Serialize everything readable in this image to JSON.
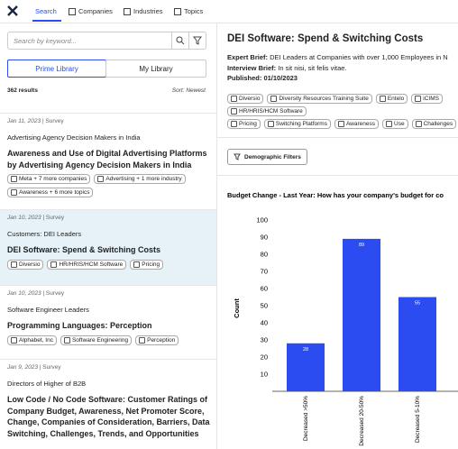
{
  "nav": {
    "tabs": [
      "Search",
      "Companies",
      "Industries",
      "Topics"
    ]
  },
  "search": {
    "placeholder": "Search by keyword..."
  },
  "library": {
    "tabs": [
      "Prime Library",
      "My Library"
    ]
  },
  "results": {
    "count": "362 results",
    "sort": "Sort: Newest"
  },
  "items": [
    {
      "date": "Jan 11, 2023",
      "type": "Survey",
      "audience": "Advertising Agency Decision Makers in India",
      "title": "Awareness and Use of Digital Advertising Platforms by Advertising Agency Decision Makers in India",
      "tags": [
        "Meta + 7 more companies",
        "Advertising + 1 more industry",
        "Awareness + 6 more topics"
      ]
    },
    {
      "date": "Jan 10, 2023",
      "type": "Survey",
      "audience": "Customers: DEI Leaders",
      "title": "DEI Software: Spend & Switching Costs",
      "tags": [
        "Diversio",
        "HR/HRIS/HCM Software",
        "Pricing"
      ]
    },
    {
      "date": "Jan 10, 2023",
      "type": "Survey",
      "audience": "Software Engineer Leaders",
      "title": "Programming Languages: Perception",
      "tags": [
        "Alphabet, Inc",
        "Software Engineering",
        "Perception"
      ]
    },
    {
      "date": "Jan 9, 2023",
      "type": "Survey",
      "audience": "Directors of Higher of B2B",
      "title": "Low Code / No Code Software: Customer Ratings of Company Budget, Awareness, Net Promoter Score, Change, Companies of Consideration, Barriers, Data Switching, Challenges, Trends, and Opportunities",
      "tags": []
    }
  ],
  "detail": {
    "title": "DEI Software: Spend & Switching Costs",
    "expert_label": "Expert Brief:",
    "expert": "DEI Leaders at Companies with over 1,000 Employees in N",
    "interview_label": "Interview Brief:",
    "interview": "In sit nisi, sit felis vitae.",
    "published_label": "Published:",
    "published": "01/10/2023",
    "tags": [
      [
        "Diversio",
        "Diversity Resources Training Suite",
        "Entelo",
        "iCIMS"
      ],
      [
        "HR/HRIS/HCM Software"
      ],
      [
        "Pricing",
        "Switching Platforms",
        "Awareness",
        "Use",
        "Challenges"
      ]
    ],
    "filter": "Demographic Filters"
  },
  "chart": {
    "type": "bar",
    "title": "Budget Change - Last Year: How has your company's budget for co",
    "ylabel": "Count",
    "categories": [
      "Decreased >50%",
      "Decreased 20-50%",
      "Decreased 5-10%"
    ],
    "values": [
      28,
      89,
      55
    ],
    "color": "#2b4cf0",
    "ylim": [
      0,
      100
    ],
    "yticks": [
      10,
      20,
      30,
      40,
      50,
      60,
      70,
      80,
      90,
      100
    ]
  }
}
